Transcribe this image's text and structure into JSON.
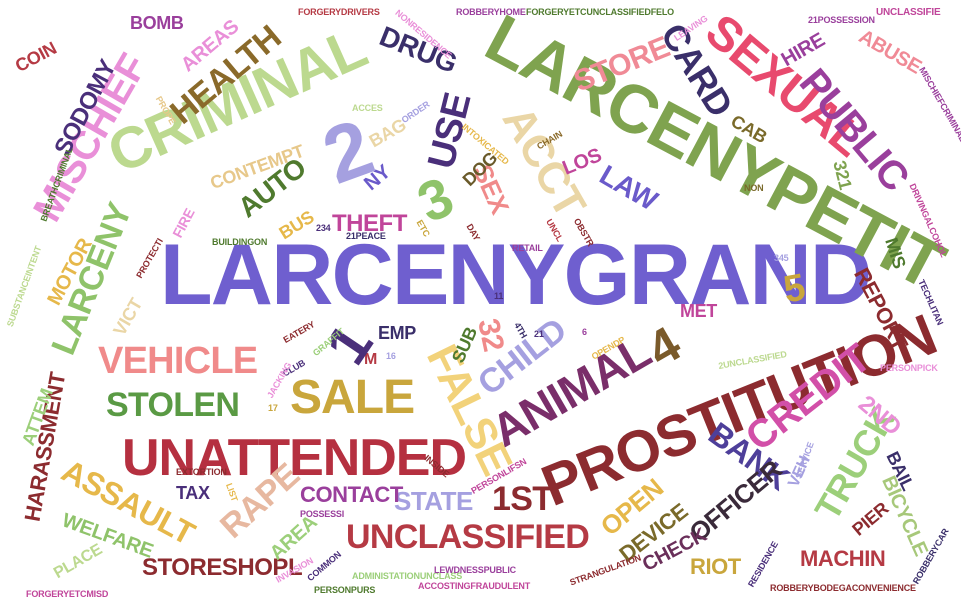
{
  "words": [
    {
      "text": "LARCENYGRAND",
      "color": "#6f5fcf"
    },
    {
      "text": "LARCENYPETIT",
      "color": "#7fa34f"
    },
    {
      "text": "CRIMINAL",
      "color": "#bcd98f"
    },
    {
      "text": "PROSTITUTION",
      "color": "#8c2b2f"
    },
    {
      "text": "UNATTENDED",
      "color": "#b53040"
    },
    {
      "text": "SEXUAL",
      "color": "#e84a6e"
    },
    {
      "text": "ANIMAL",
      "color": "#7a2e6a"
    },
    {
      "text": "MISCHIEF",
      "color": "#e98fd8"
    },
    {
      "text": "VEHICLE",
      "color": "#f08a8a"
    },
    {
      "text": "FALSE",
      "color": "#f2d27a"
    },
    {
      "text": "SALE",
      "color": "#c9a63c"
    },
    {
      "text": "CREDIT",
      "color": "#d24fa8"
    },
    {
      "text": "PUBLIC",
      "color": "#9a3f9c"
    },
    {
      "text": "LARCENY",
      "color": "#8fc36a"
    },
    {
      "text": "HEALTH",
      "color": "#8a6a2a"
    },
    {
      "text": "ACCT",
      "color": "#ead6a6"
    },
    {
      "text": "CARD",
      "color": "#3a2f6a"
    },
    {
      "text": "USE",
      "color": "#4a2f7a"
    },
    {
      "text": "CHILD",
      "color": "#a5a0e0"
    },
    {
      "text": "STOLEN",
      "color": "#5a9a44"
    },
    {
      "text": "TRUCK",
      "color": "#9ccf7a"
    },
    {
      "text": "UNCLASSIFIED",
      "color": "#b53a44"
    },
    {
      "text": "ASSAULT",
      "color": "#e6b84a"
    },
    {
      "text": "BANK",
      "color": "#4e3f9a"
    },
    {
      "text": "OFFICER",
      "color": "#3a2a3a"
    },
    {
      "text": "STORE",
      "color": "#f08a96"
    },
    {
      "text": "DRUG",
      "color": "#3a2f6a"
    },
    {
      "text": "LAW",
      "color": "#6a5aca"
    },
    {
      "text": "AUTO",
      "color": "#4f7a2e"
    },
    {
      "text": "THEFT",
      "color": "#c0459a"
    },
    {
      "text": "SODOMY",
      "color": "#4a2f7a"
    },
    {
      "text": "RAPE",
      "color": "#e7b8a0"
    },
    {
      "text": "1ST",
      "color": "#8c2b2f"
    },
    {
      "text": "STATE",
      "color": "#a5a0e0"
    },
    {
      "text": "CONTACT",
      "color": "#9a3f9c"
    },
    {
      "text": "STORESHOPL",
      "color": "#8c2b2f"
    },
    {
      "text": "WELFARE",
      "color": "#8fc36a"
    },
    {
      "text": "HARASSMENT",
      "color": "#8c2b2f"
    },
    {
      "text": "MOTOR",
      "color": "#e6b84a"
    },
    {
      "text": "ATTEM",
      "color": "#9ccf7a"
    },
    {
      "text": "PLACE",
      "color": "#bcd98f"
    },
    {
      "text": "AREA",
      "color": "#9ccf7a"
    },
    {
      "text": "OPEN",
      "color": "#e6b84a"
    },
    {
      "text": "DEVICE",
      "color": "#7a6a2a"
    },
    {
      "text": "CHECK",
      "color": "#6a2f5a"
    },
    {
      "text": "RIOT",
      "color": "#c9a63c"
    },
    {
      "text": "MACHIN",
      "color": "#b53a44"
    },
    {
      "text": "PIER",
      "color": "#8c2b2f"
    },
    {
      "text": "BICYCLE",
      "color": "#a7c87a"
    },
    {
      "text": "BAIL",
      "color": "#3a2f6a"
    },
    {
      "text": "VEH",
      "color": "#a5a0e0"
    },
    {
      "text": "2ND",
      "color": "#e98fd8"
    },
    {
      "text": "REPORT",
      "color": "#8c2b2f"
    },
    {
      "text": "MIS",
      "color": "#4f7a2e"
    },
    {
      "text": "MET",
      "color": "#c0459a"
    },
    {
      "text": "SEX",
      "color": "#f08a8a"
    },
    {
      "text": "DOG",
      "color": "#6a5a2a"
    },
    {
      "text": "LOS",
      "color": "#c0459a"
    },
    {
      "text": "NY",
      "color": "#6a5aca"
    },
    {
      "text": "CONTEMPT",
      "color": "#e7c88a"
    },
    {
      "text": "BAG",
      "color": "#ead6a6"
    },
    {
      "text": "BUS",
      "color": "#e6b84a"
    },
    {
      "text": "FIRE",
      "color": "#e98fd8"
    },
    {
      "text": "AREAS",
      "color": "#e98fd8"
    },
    {
      "text": "BOMB",
      "color": "#9a3f9c"
    },
    {
      "text": "COIN",
      "color": "#b53a44"
    },
    {
      "text": "HIRE",
      "color": "#9a3f9c"
    },
    {
      "text": "ABUSE",
      "color": "#f08a96"
    },
    {
      "text": "CAB",
      "color": "#7a6a2a"
    },
    {
      "text": "VICT",
      "color": "#ead6a6"
    },
    {
      "text": "EMP",
      "color": "#3a2f6a"
    },
    {
      "text": "SUB",
      "color": "#4f7a2e"
    },
    {
      "text": "TAX",
      "color": "#4a2f7a"
    },
    {
      "text": "M",
      "color": "#b53a44"
    },
    {
      "text": "2",
      "color": "#a5a0e0"
    },
    {
      "text": "3",
      "color": "#8fc36a"
    },
    {
      "text": "4",
      "color": "#7a5a2a"
    },
    {
      "text": "1",
      "color": "#4a2f7a"
    },
    {
      "text": "5",
      "color": "#c9a63c"
    },
    {
      "text": "32",
      "color": "#f08a8a"
    },
    {
      "text": "321",
      "color": "#7fa34f"
    },
    {
      "text": "FORGERYDRIVERS",
      "color": "#b53a44"
    },
    {
      "text": "ROBBERYHOME",
      "color": "#9a3f9c"
    },
    {
      "text": "FORGERYETCUNCLASSIFIEDFELO",
      "color": "#4f7a2e"
    },
    {
      "text": "NONRESIDENCE",
      "color": "#e98fd8"
    },
    {
      "text": "UNCLASSIFIE",
      "color": "#c0459a"
    },
    {
      "text": "LEAVING",
      "color": "#e98fd8"
    },
    {
      "text": "21POSSESSION",
      "color": "#9a3f9c"
    },
    {
      "text": "MISCHIEFCRIMINAL",
      "color": "#9a3f9c"
    },
    {
      "text": "INTOXICATED",
      "color": "#e6b84a"
    },
    {
      "text": "ORDER",
      "color": "#a5a0e0"
    },
    {
      "text": "ACCES",
      "color": "#bcd98f"
    },
    {
      "text": "CHAIN",
      "color": "#8a6a2a"
    },
    {
      "text": "PROPE",
      "color": "#e7c88a"
    },
    {
      "text": "BREATHCRIMINAL",
      "color": "#4f7a2e"
    },
    {
      "text": "BUILDINGON",
      "color": "#4f7a2e"
    },
    {
      "text": "234",
      "color": "#4a2f7a"
    },
    {
      "text": "21PEACE",
      "color": "#3a2f6a"
    },
    {
      "text": "ETC",
      "color": "#c9a63c"
    },
    {
      "text": "DAY",
      "color": "#8c2b2f"
    },
    {
      "text": "RETAIL",
      "color": "#9a3f9c"
    },
    {
      "text": "UNCL",
      "color": "#b53a44"
    },
    {
      "text": "OBSTR",
      "color": "#8c2b2f"
    },
    {
      "text": "NON",
      "color": "#7a6a2a"
    },
    {
      "text": "DRIVINGALCOHOL",
      "color": "#c0459a"
    },
    {
      "text": "PROTECTI",
      "color": "#8c2b2f"
    },
    {
      "text": "SUBSTANCEINTENT",
      "color": "#bcd98f"
    },
    {
      "text": "345",
      "color": "#a5a0e0"
    },
    {
      "text": "11",
      "color": "#4a2f7a"
    },
    {
      "text": "4TH",
      "color": "#3a2f6a"
    },
    {
      "text": "21",
      "color": "#4a2f7a"
    },
    {
      "text": "6",
      "color": "#9a3f9c"
    },
    {
      "text": "OPENDP",
      "color": "#e6b84a"
    },
    {
      "text": "EATERY",
      "color": "#8c2b2f"
    },
    {
      "text": "GRAFFIT",
      "color": "#9ccf7a"
    },
    {
      "text": "CLUB",
      "color": "#4a2f7a"
    },
    {
      "text": "16",
      "color": "#a5a0e0"
    },
    {
      "text": "17",
      "color": "#c9a63c"
    },
    {
      "text": "JACKING",
      "color": "#e98fd8"
    },
    {
      "text": "2UNCLASSIFIED",
      "color": "#bcd98f"
    },
    {
      "text": "TECHLITAN",
      "color": "#4a2f7a"
    },
    {
      "text": "PERSONPICK",
      "color": "#e98fd8"
    },
    {
      "text": "INSIDE",
      "color": "#8c2b2f"
    },
    {
      "text": "PERSONLIFSN",
      "color": "#c0459a"
    },
    {
      "text": "EXTORTION",
      "color": "#8c2b2f"
    },
    {
      "text": "LIST",
      "color": "#e6b84a"
    },
    {
      "text": "POSSESSI",
      "color": "#9a3f9c"
    },
    {
      "text": "INVASION",
      "color": "#e98fd8"
    },
    {
      "text": "COMMON",
      "color": "#4a2f7a"
    },
    {
      "text": "FORGERYETCMISD",
      "color": "#c0459a"
    },
    {
      "text": "PERSONPURS",
      "color": "#4f7a2e"
    },
    {
      "text": "ADMINISTATIONUNCLASS",
      "color": "#9ccf7a"
    },
    {
      "text": "LEWDNESSPUBLIC",
      "color": "#9a3f9c"
    },
    {
      "text": "ACCOSTINGFRAUDULENT",
      "color": "#c0459a"
    },
    {
      "text": "STRANGULATION",
      "color": "#8c2b2f"
    },
    {
      "text": "RESIDENCE",
      "color": "#4a2f7a"
    },
    {
      "text": "ROBBERYBODEGACONVENIENCE",
      "color": "#8c2b2f"
    },
    {
      "text": "ROBBERYCAR",
      "color": "#3a2f6a"
    },
    {
      "text": "SERVICE",
      "color": "#a5a0e0"
    }
  ]
}
